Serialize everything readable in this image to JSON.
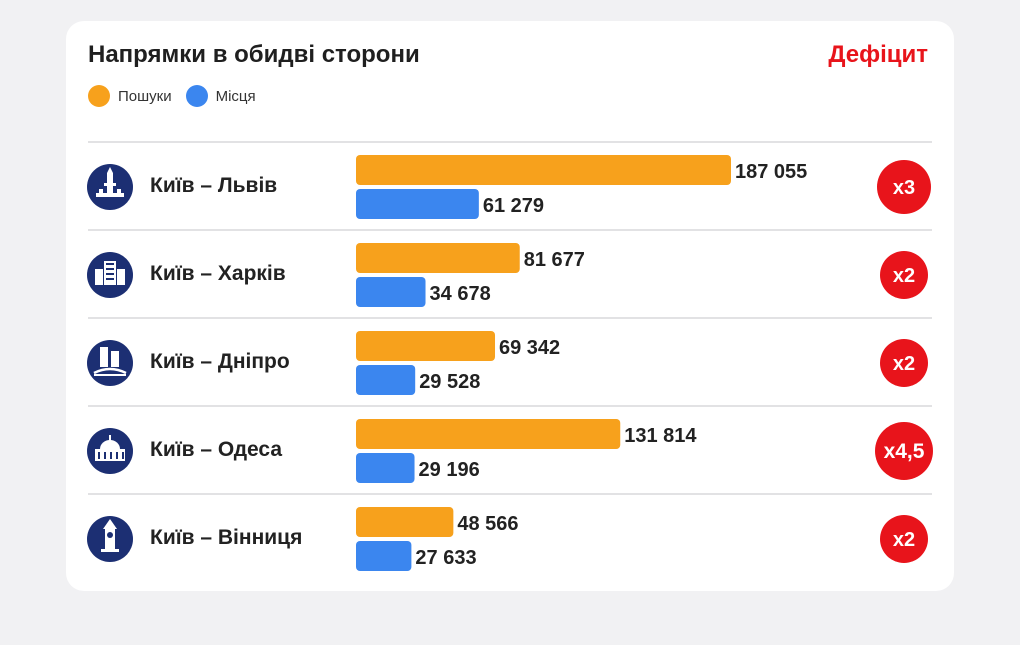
{
  "header": {
    "title": "Напрямки в обидві сторони",
    "deficit_label": "Дефіцит"
  },
  "legend": [
    {
      "label": "Пошуки",
      "color": "#f7a11c"
    },
    {
      "label": "Місця",
      "color": "#3b86ef"
    }
  ],
  "colors": {
    "search": "#f7a11c",
    "seats": "#3b86ef",
    "badge": "#e8141b",
    "icon_bg": "#1c2f73",
    "divider": "#d9d9dc"
  },
  "chart_data": {
    "type": "bar",
    "orientation": "horizontal",
    "categories": [
      "Київ – Львів",
      "Київ – Харків",
      "Київ – Дніпро",
      "Київ – Одеса",
      "Київ – Вінниця"
    ],
    "series": [
      {
        "name": "Пошуки",
        "values": [
          187055,
          81677,
          69342,
          131814,
          48566
        ]
      },
      {
        "name": "Місця",
        "values": [
          61279,
          34678,
          29528,
          29196,
          27633
        ]
      }
    ],
    "value_labels": {
      "search": [
        "187 055",
        "81 677",
        "69 342",
        "131 814",
        "48 566"
      ],
      "seats": [
        "61 279",
        "34 678",
        "29 528",
        "29 196",
        "27 633"
      ]
    },
    "ratio_labels": [
      "x3",
      "x2",
      "x2",
      "x4,5",
      "x2"
    ],
    "icons": [
      "lviv-town-hall-icon",
      "kharkiv-derzhprom-icon",
      "dnipro-towers-icon",
      "odesa-opera-icon",
      "vinnytsia-water-tower-icon"
    ],
    "xlim": [
      0,
      187055
    ]
  }
}
